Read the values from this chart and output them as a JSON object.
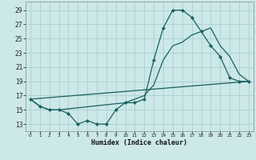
{
  "xlabel": "Humidex (Indice chaleur)",
  "bg_color": "#cce8e8",
  "grid_color": "#aacfcf",
  "line_color": "#1a6060",
  "x_ticks": [
    0,
    1,
    2,
    3,
    4,
    5,
    6,
    7,
    8,
    9,
    10,
    11,
    12,
    13,
    14,
    15,
    16,
    17,
    18,
    19,
    20,
    21,
    22,
    23
  ],
  "y_ticks": [
    13,
    15,
    17,
    19,
    21,
    23,
    25,
    27,
    29
  ],
  "xlim": [
    -0.5,
    23.5
  ],
  "ylim": [
    12.0,
    30.2
  ],
  "line1_x": [
    0,
    1,
    2,
    3,
    4,
    5,
    6,
    7,
    8,
    9,
    10,
    11,
    12,
    13,
    14,
    15,
    16,
    17,
    18,
    19,
    20,
    21,
    22,
    23
  ],
  "line1_y": [
    16.5,
    15.5,
    15.0,
    15.0,
    14.5,
    13.0,
    13.5,
    13.0,
    13.0,
    15.0,
    16.0,
    16.0,
    16.5,
    22.0,
    26.5,
    29.0,
    29.0,
    28.0,
    26.0,
    24.0,
    22.5,
    19.5,
    19.0,
    19.0
  ],
  "line2_x": [
    0,
    1,
    2,
    3,
    10,
    11,
    12,
    13,
    14,
    15,
    16,
    17,
    18,
    19,
    20,
    21,
    22,
    23
  ],
  "line2_y": [
    16.5,
    15.5,
    15.0,
    15.0,
    16.0,
    16.5,
    17.0,
    18.5,
    22.0,
    24.0,
    24.5,
    25.5,
    26.0,
    26.5,
    24.0,
    22.5,
    20.0,
    19.0
  ],
  "line3_x": [
    0,
    23
  ],
  "line3_y": [
    16.5,
    19.0
  ]
}
